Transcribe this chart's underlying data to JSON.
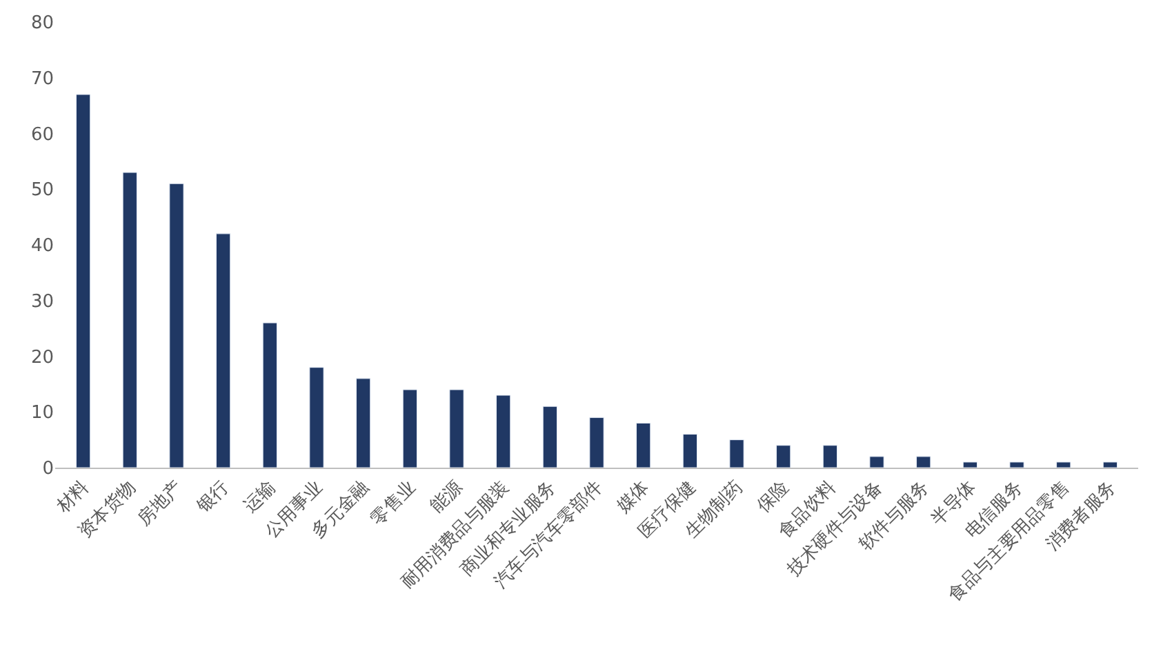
{
  "chart_data": {
    "type": "bar",
    "categories": [
      "材料",
      "资本货物",
      "房地产",
      "银行",
      "运输",
      "公用事业",
      "多元金融",
      "零售业",
      "能源",
      "耐用消费品与服装",
      "商业和专业服务",
      "汽车与汽车零部件",
      "媒体",
      "医疗保健",
      "生物制药",
      "保险",
      "食品饮料",
      "技术硬件与设备",
      "软件与服务",
      "半导体",
      "电信服务",
      "食品与主要用品零售",
      "消费者服务"
    ],
    "values": [
      67,
      53,
      51,
      42,
      26,
      18,
      16,
      14,
      14,
      13,
      11,
      9,
      8,
      6,
      5,
      4,
      4,
      2,
      2,
      1,
      1,
      1,
      1
    ],
    "color": "#203864",
    "ylim": [
      0,
      80
    ],
    "yticks": [
      0,
      10,
      20,
      30,
      40,
      50,
      60,
      70,
      80
    ],
    "grid": false
  }
}
